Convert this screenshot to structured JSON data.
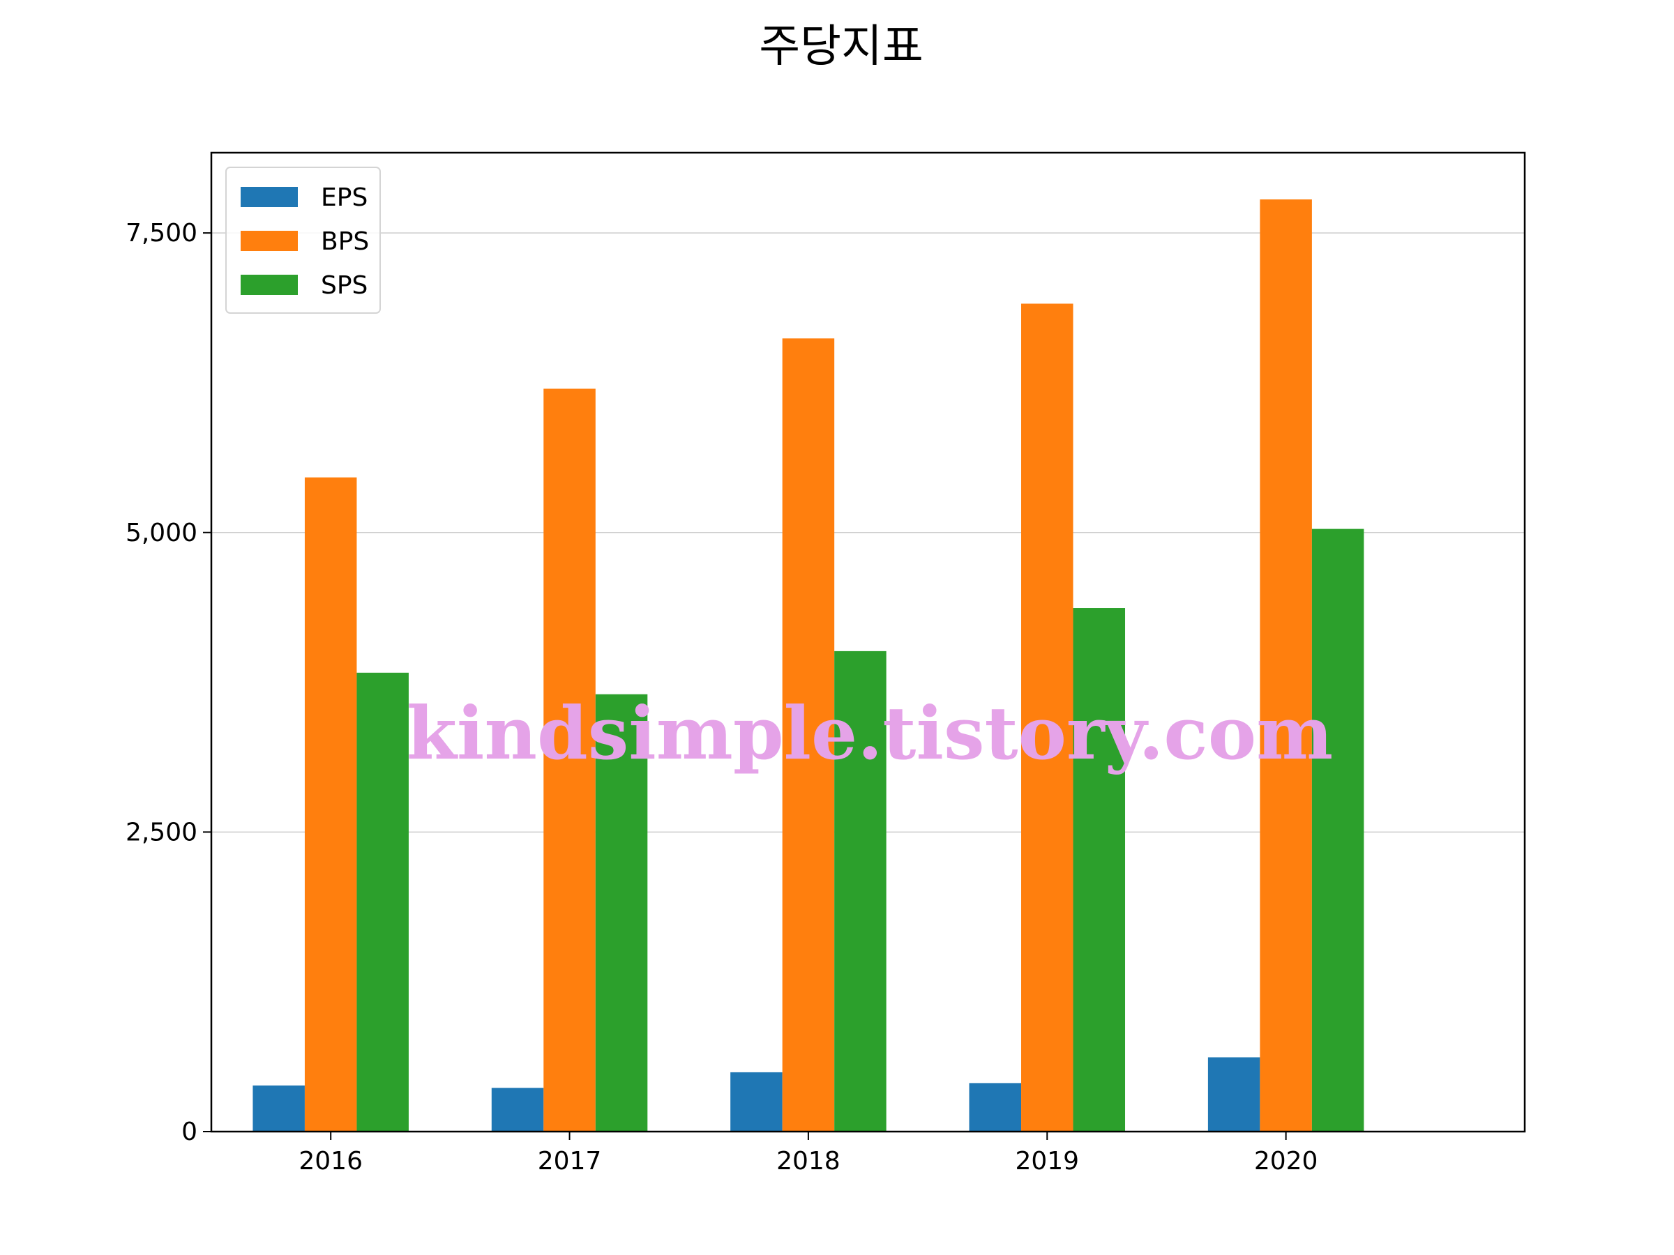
{
  "chart_data": {
    "type": "bar",
    "title": "주당지표",
    "xlabel": "",
    "ylabel": "",
    "categories": [
      "2016",
      "2017",
      "2018",
      "2019",
      "2020"
    ],
    "series": [
      {
        "name": "EPS",
        "color": "#1f77b4",
        "values": [
          385,
          365,
          495,
          405,
          620
        ]
      },
      {
        "name": "BPS",
        "color": "#ff7f0e",
        "values": [
          5460,
          6200,
          6620,
          6910,
          7780
        ]
      },
      {
        "name": "SPS",
        "color": "#2ca02c",
        "values": [
          3830,
          3650,
          4010,
          4370,
          5030
        ]
      }
    ],
    "ylim": [
      0,
      8170
    ],
    "yticks": [
      0,
      2500,
      5000,
      7500
    ],
    "ytick_labels": [
      "0",
      "2,500",
      "5,000",
      "7,500"
    ],
    "grid": "horizontal",
    "legend_position": "top-left"
  },
  "watermark": "kindsimple.tistory.com"
}
